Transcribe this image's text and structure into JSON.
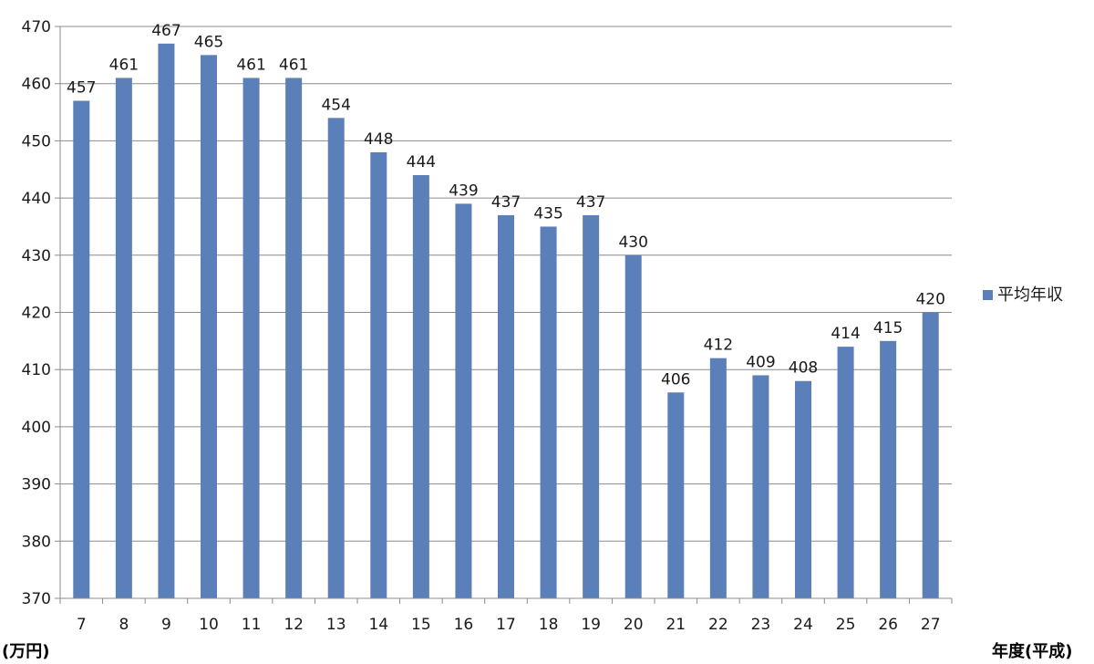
{
  "chart_data": {
    "type": "bar",
    "categories": [
      "7",
      "8",
      "9",
      "10",
      "11",
      "12",
      "13",
      "14",
      "15",
      "16",
      "17",
      "18",
      "19",
      "20",
      "21",
      "22",
      "23",
      "24",
      "25",
      "26",
      "27"
    ],
    "series": [
      {
        "name": "平均年収",
        "values": [
          457,
          461,
          467,
          465,
          461,
          461,
          454,
          448,
          444,
          439,
          437,
          435,
          437,
          430,
          406,
          412,
          409,
          408,
          414,
          415,
          420
        ],
        "color": "#5b7fb8"
      }
    ],
    "ylim": [
      370,
      470
    ],
    "yticks": [
      370,
      380,
      390,
      400,
      410,
      420,
      430,
      440,
      450,
      460,
      470
    ],
    "ylabel": "(万円)",
    "xlabel": "年度(平成)",
    "grid": true,
    "legend_position": "right",
    "data_labels": true
  }
}
